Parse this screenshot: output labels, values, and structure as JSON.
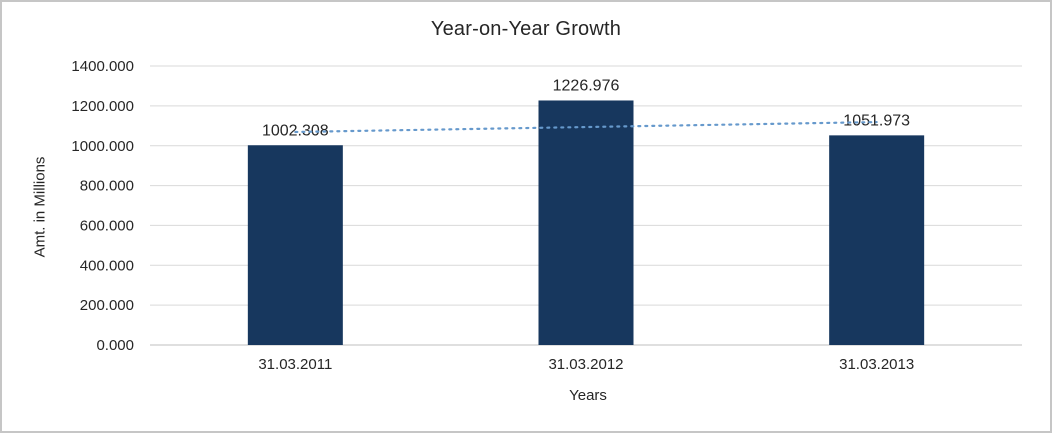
{
  "chart_data": {
    "type": "bar",
    "title": "Year-on-Year Growth",
    "xlabel": "Years",
    "ylabel": "Amt. in Millions",
    "categories": [
      "31.03.2011",
      "31.03.2012",
      "31.03.2013"
    ],
    "values": [
      1002.308,
      1226.976,
      1051.973
    ],
    "data_labels": [
      "1002.308",
      "1226.976",
      "1051.973"
    ],
    "ylim": [
      0,
      1400
    ],
    "ytick_step": 200,
    "ytick_labels": [
      "0.000",
      "200.000",
      "400.000",
      "600.000",
      "800.000",
      "1000.000",
      "1200.000",
      "1400.000"
    ],
    "grid": true,
    "legend": "none",
    "bar_color": "#17375e",
    "gridline_color": "#d9d9d9",
    "axis_line_color": "#bfbfbf",
    "text_color": "#262626",
    "trendline": {
      "type": "linear",
      "style": "dotted",
      "color": "#6699cc"
    }
  }
}
